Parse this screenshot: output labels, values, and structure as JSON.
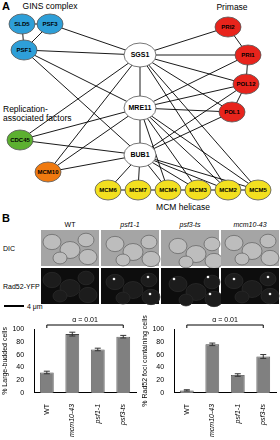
{
  "figure": {
    "panel_a": {
      "label": "A",
      "hubs": [
        {
          "label": "SGS1",
          "color": "#ffffff"
        },
        {
          "label": "MRE11",
          "color": "#ffffff"
        },
        {
          "label": "BUB1",
          "color": "#ffffff"
        }
      ],
      "groups": [
        {
          "name": [
            "GINS complex"
          ],
          "nodes": [
            {
              "label": "SLD5",
              "color": "#2e9fd8"
            },
            {
              "label": "PSF3",
              "color": "#2e9fd8"
            },
            {
              "label": "PSF1",
              "color": "#2e9fd8"
            }
          ]
        },
        {
          "name": [
            "Primase"
          ],
          "nodes": [
            {
              "label": "PRI2",
              "color": "#e8241c"
            },
            {
              "label": "PRI1",
              "color": "#e8241c"
            },
            {
              "label": "POL12",
              "color": "#e8241c"
            },
            {
              "label": "POL1",
              "color": "#e8241c"
            }
          ]
        },
        {
          "name": [
            "Replication-",
            "associated factors"
          ],
          "nodes": [
            {
              "label": "CDC45",
              "color": "#5cb030"
            },
            {
              "label": "MCM10",
              "color": "#f07a10"
            }
          ]
        },
        {
          "name": [
            "MCM helicase"
          ],
          "nodes": [
            {
              "label": "MCM6",
              "color": "#f2e020"
            },
            {
              "label": "MCM7",
              "color": "#f2e020"
            },
            {
              "label": "MCM4",
              "color": "#f2e020"
            },
            {
              "label": "MCM3",
              "color": "#f2e020"
            },
            {
              "label": "MCM2",
              "color": "#f2e020"
            },
            {
              "label": "MCM5",
              "color": "#f2e020"
            }
          ]
        }
      ],
      "edges": [
        [
          "SLD5",
          "PSF3"
        ],
        [
          "SLD5",
          "PSF1"
        ],
        [
          "PSF3",
          "PSF1"
        ],
        [
          "PSF1",
          "SGS1"
        ],
        [
          "PSF1",
          "MRE11"
        ],
        [
          "PSF1",
          "BUB1"
        ],
        [
          "PSF3",
          "SGS1"
        ],
        [
          "PRI2",
          "PRI1"
        ],
        [
          "PRI1",
          "POL12"
        ],
        [
          "POL12",
          "POL1"
        ],
        [
          "SGS1",
          "PRI2"
        ],
        [
          "SGS1",
          "PRI1"
        ],
        [
          "SGS1",
          "POL12"
        ],
        [
          "SGS1",
          "POL1"
        ],
        [
          "MRE11",
          "PRI1"
        ],
        [
          "MRE11",
          "POL12"
        ],
        [
          "MRE11",
          "POL1"
        ],
        [
          "BUB1",
          "POL1"
        ],
        [
          "BUB1",
          "POL12"
        ],
        [
          "SGS1",
          "MRE11"
        ],
        [
          "MRE11",
          "BUB1"
        ],
        [
          "CDC45",
          "SGS1"
        ],
        [
          "CDC45",
          "MRE11"
        ],
        [
          "CDC45",
          "BUB1"
        ],
        [
          "MCM10",
          "BUB1"
        ],
        [
          "MCM10",
          "MRE11"
        ],
        [
          "MCM10",
          "SGS1"
        ],
        [
          "MCM6",
          "MCM7"
        ],
        [
          "MCM7",
          "MCM4"
        ],
        [
          "MCM4",
          "MCM3"
        ],
        [
          "MCM3",
          "MCM2"
        ],
        [
          "MCM2",
          "MCM5"
        ],
        [
          "SGS1",
          "MCM2"
        ],
        [
          "SGS1",
          "MCM5"
        ],
        [
          "MRE11",
          "MCM3"
        ],
        [
          "MRE11",
          "MCM4"
        ],
        [
          "MRE11",
          "MCM2"
        ],
        [
          "MRE11",
          "MCM5"
        ],
        [
          "BUB1",
          "MCM6"
        ],
        [
          "BUB1",
          "MCM7"
        ],
        [
          "BUB1",
          "MCM4"
        ],
        [
          "BUB1",
          "MCM3"
        ],
        [
          "BUB1",
          "MCM2"
        ],
        [
          "BUB1",
          "MCM5"
        ]
      ]
    },
    "panel_b": {
      "label": "B",
      "columns": [
        "WT",
        "psf1-1",
        "psf3-ts",
        "mcm10-43"
      ],
      "rows": [
        "DIC",
        "Rad52-YFP"
      ],
      "scale_bar": "4 μm"
    }
  },
  "chart_data": [
    {
      "type": "bar",
      "y_label": "% Large-budded cells",
      "categories": [
        "WT",
        "mcm10-43",
        "psf1-1",
        "psf3-ts"
      ],
      "values": [
        32,
        92,
        68,
        88
      ],
      "errors": [
        2,
        3,
        2,
        2
      ],
      "color": "#808080",
      "ylim": [
        0,
        100
      ],
      "yticks": [
        0,
        20,
        40,
        60,
        80,
        100
      ],
      "grid": false,
      "annotations": [
        {
          "text": "α = 0.01",
          "from": "WT",
          "to": "psf3-ts"
        }
      ]
    },
    {
      "type": "bar",
      "y_label": "% Rad52 foci containing cells",
      "categories": [
        "WT",
        "mcm10-43",
        "psf1-1",
        "psf3-ts"
      ],
      "values": [
        4,
        76,
        28,
        57
      ],
      "errors": [
        1,
        2,
        2,
        3
      ],
      "color": "#808080",
      "ylim": [
        0,
        100
      ],
      "yticks": [
        0,
        20,
        40,
        60,
        80,
        100
      ],
      "grid": false,
      "annotations": [
        {
          "text": "α = 0.01",
          "from": "WT",
          "to": "psf3-ts"
        }
      ]
    }
  ]
}
